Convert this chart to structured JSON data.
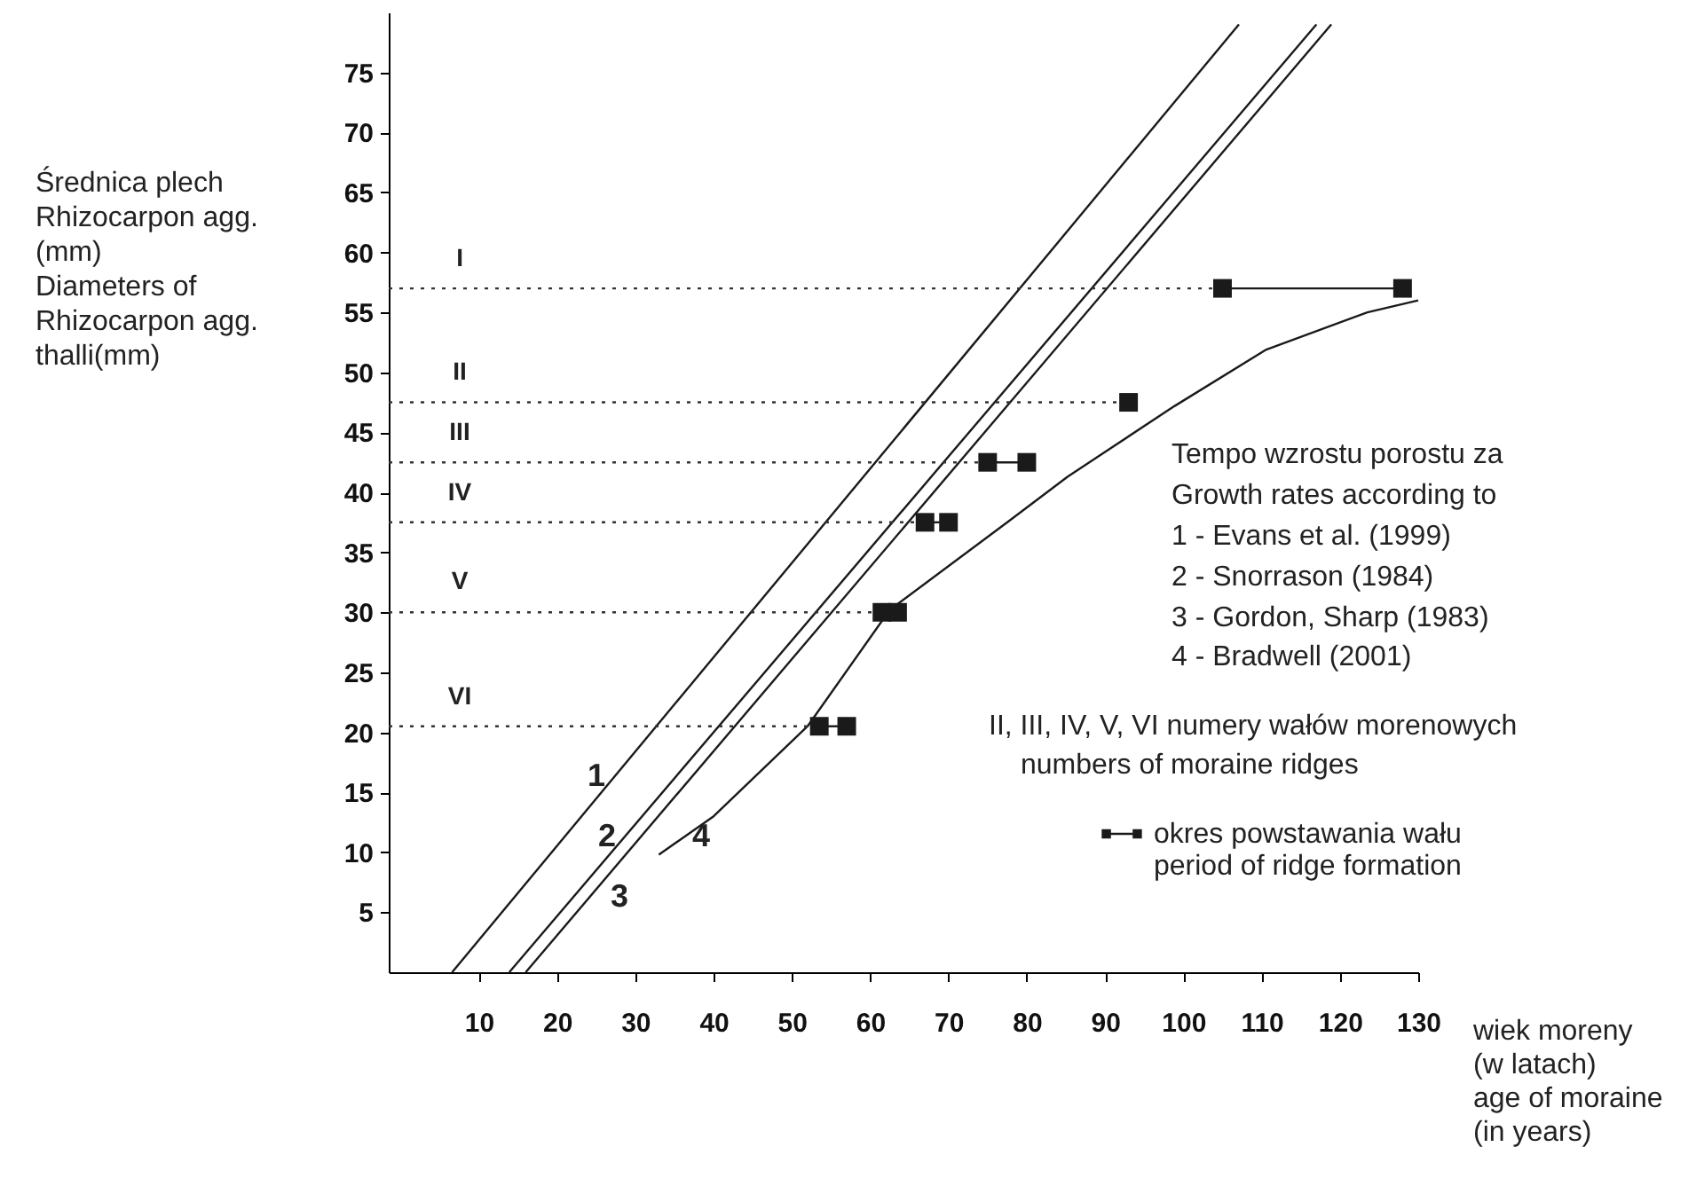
{
  "chart_data": {
    "type": "line",
    "xlim": [
      -1.5,
      130
    ],
    "ylim": [
      0,
      80
    ],
    "xticks": [
      10,
      20,
      30,
      40,
      50,
      60,
      70,
      80,
      90,
      100,
      110,
      120,
      130
    ],
    "yticks": [
      5,
      10,
      15,
      20,
      25,
      30,
      35,
      40,
      45,
      50,
      55,
      60,
      65,
      70,
      75
    ],
    "grid": false,
    "legend": "bottom right",
    "ylabel": "Średnica plech\nRhizocarpon agg.\n(mm)\nDiameters of\nRhizocarpon agg.\nthalli(mm)",
    "xlabel": "wiek moreny\n(w latach)\n\nage of moraine\n(in years)",
    "series": [
      {
        "color": "#1a1a1a",
        "line_style": "solid",
        "marker": "none",
        "x": [
          6.6,
          107.1
        ],
        "values": [
          0,
          79
        ]
      },
      {
        "color": "#1a1a1a",
        "line_style": "solid",
        "marker": "none",
        "x": [
          13.9,
          117.0
        ],
        "values": [
          0,
          79
        ]
      },
      {
        "color": "#1a1a1a",
        "line_style": "solid",
        "marker": "none",
        "x": [
          16.0,
          118.9
        ],
        "values": [
          0,
          79
        ]
      },
      {
        "color": "#1a1a1a",
        "line_style": "solid",
        "marker": "none",
        "x": [
          33,
          40,
          52,
          62.5,
          77.7,
          85.2,
          98.9,
          110.6,
          123.5,
          130
        ],
        "values": [
          9.8,
          13,
          20.5,
          30.2,
          37.6,
          41.3,
          47.2,
          51.9,
          55,
          56
        ]
      },
      {
        "color": "#333333",
        "line_style": "dotted",
        "marker": "none",
        "x": [
          -1.5,
          105
        ],
        "values": [
          57,
          57
        ]
      },
      {
        "color": "#333333",
        "line_style": "dotted",
        "marker": "none",
        "x": [
          -1.5,
          93
        ],
        "values": [
          47.5,
          47.5
        ]
      },
      {
        "color": "#333333",
        "line_style": "dotted",
        "marker": "none",
        "x": [
          -1.5,
          75
        ],
        "values": [
          42.5,
          42.5
        ]
      },
      {
        "color": "#333333",
        "line_style": "dotted",
        "marker": "none",
        "x": [
          -1.5,
          67
        ],
        "values": [
          37.5,
          37.5
        ]
      },
      {
        "color": "#333333",
        "line_style": "dotted",
        "marker": "none",
        "x": [
          -1.5,
          61.5
        ],
        "values": [
          30,
          30
        ]
      },
      {
        "color": "#333333",
        "line_style": "dotted",
        "marker": "none",
        "x": [
          -1.5,
          53.5
        ],
        "values": [
          20.5,
          20.5
        ]
      },
      {
        "name": "okres powstawania wału\nperiod of ridge formation",
        "color": "#1a1a1a",
        "line_style": "solid",
        "marker": "square",
        "x": [
          105,
          128,
          null,
          93,
          null,
          75,
          80,
          null,
          67,
          70,
          null,
          61.5,
          63.5,
          null,
          53.5,
          57
        ],
        "values": [
          57,
          57,
          null,
          47.5,
          null,
          42.5,
          42.5,
          null,
          37.5,
          37.5,
          null,
          30,
          30,
          null,
          20.5,
          20.5
        ]
      }
    ],
    "annotations": [
      "I",
      "II",
      "III",
      "IV",
      "V",
      "VI",
      "1",
      "2",
      "3",
      "4",
      "Tempo wzrostu porostu za",
      "Growth rates according to",
      "1 - Evans et al. (1999)",
      "2 - Snorrason (1984)",
      "3 -  Gordon, Sharp (1983)",
      "4 -  Bradwell (2001)",
      "II, III, IV, V, VI  numery wałów morenowych",
      "numbers of moraine ridges"
    ]
  }
}
